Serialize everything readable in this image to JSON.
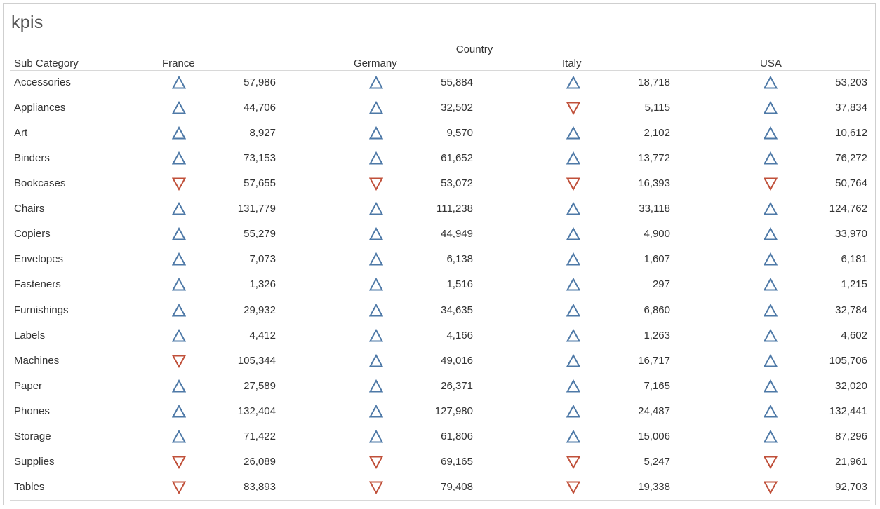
{
  "title": "kpis",
  "column_group_label": "Country",
  "row_header_label": "Sub Category",
  "colors": {
    "up": "#4e79a7",
    "down": "#c0503a"
  },
  "icons": {
    "up": "triangle-up-outline-icon",
    "down": "triangle-down-outline-icon"
  },
  "chart_data": {
    "type": "table",
    "title": "kpis",
    "columns_label": "Country",
    "rows_label": "Sub Category",
    "countries": [
      "France",
      "Germany",
      "Italy",
      "USA"
    ],
    "rows": [
      {
        "name": "Accessories",
        "values": [
          57986,
          55884,
          18718,
          53203
        ],
        "display": [
          "57,986",
          "55,884",
          "18,718",
          "53,203"
        ],
        "trend": [
          "up",
          "up",
          "up",
          "up"
        ]
      },
      {
        "name": "Appliances",
        "values": [
          44706,
          32502,
          5115,
          37834
        ],
        "display": [
          "44,706",
          "32,502",
          "5,115",
          "37,834"
        ],
        "trend": [
          "up",
          "up",
          "down",
          "up"
        ]
      },
      {
        "name": "Art",
        "values": [
          8927,
          9570,
          2102,
          10612
        ],
        "display": [
          "8,927",
          "9,570",
          "2,102",
          "10,612"
        ],
        "trend": [
          "up",
          "up",
          "up",
          "up"
        ]
      },
      {
        "name": "Binders",
        "values": [
          73153,
          61652,
          13772,
          76272
        ],
        "display": [
          "73,153",
          "61,652",
          "13,772",
          "76,272"
        ],
        "trend": [
          "up",
          "up",
          "up",
          "up"
        ]
      },
      {
        "name": "Bookcases",
        "values": [
          57655,
          53072,
          16393,
          50764
        ],
        "display": [
          "57,655",
          "53,072",
          "16,393",
          "50,764"
        ],
        "trend": [
          "down",
          "down",
          "down",
          "down"
        ]
      },
      {
        "name": "Chairs",
        "values": [
          131779,
          111238,
          33118,
          124762
        ],
        "display": [
          "131,779",
          "111,238",
          "33,118",
          "124,762"
        ],
        "trend": [
          "up",
          "up",
          "up",
          "up"
        ]
      },
      {
        "name": "Copiers",
        "values": [
          55279,
          44949,
          4900,
          33970
        ],
        "display": [
          "55,279",
          "44,949",
          "4,900",
          "33,970"
        ],
        "trend": [
          "up",
          "up",
          "up",
          "up"
        ]
      },
      {
        "name": "Envelopes",
        "values": [
          7073,
          6138,
          1607,
          6181
        ],
        "display": [
          "7,073",
          "6,138",
          "1,607",
          "6,181"
        ],
        "trend": [
          "up",
          "up",
          "up",
          "up"
        ]
      },
      {
        "name": "Fasteners",
        "values": [
          1326,
          1516,
          297,
          1215
        ],
        "display": [
          "1,326",
          "1,516",
          "297",
          "1,215"
        ],
        "trend": [
          "up",
          "up",
          "up",
          "up"
        ]
      },
      {
        "name": "Furnishings",
        "values": [
          29932,
          34635,
          6860,
          32784
        ],
        "display": [
          "29,932",
          "34,635",
          "6,860",
          "32,784"
        ],
        "trend": [
          "up",
          "up",
          "up",
          "up"
        ]
      },
      {
        "name": "Labels",
        "values": [
          4412,
          4166,
          1263,
          4602
        ],
        "display": [
          "4,412",
          "4,166",
          "1,263",
          "4,602"
        ],
        "trend": [
          "up",
          "up",
          "up",
          "up"
        ]
      },
      {
        "name": "Machines",
        "values": [
          105344,
          49016,
          16717,
          105706
        ],
        "display": [
          "105,344",
          "49,016",
          "16,717",
          "105,706"
        ],
        "trend": [
          "down",
          "up",
          "up",
          "up"
        ]
      },
      {
        "name": "Paper",
        "values": [
          27589,
          26371,
          7165,
          32020
        ],
        "display": [
          "27,589",
          "26,371",
          "7,165",
          "32,020"
        ],
        "trend": [
          "up",
          "up",
          "up",
          "up"
        ]
      },
      {
        "name": "Phones",
        "values": [
          132404,
          127980,
          24487,
          132441
        ],
        "display": [
          "132,404",
          "127,980",
          "24,487",
          "132,441"
        ],
        "trend": [
          "up",
          "up",
          "up",
          "up"
        ]
      },
      {
        "name": "Storage",
        "values": [
          71422,
          61806,
          15006,
          87296
        ],
        "display": [
          "71,422",
          "61,806",
          "15,006",
          "87,296"
        ],
        "trend": [
          "up",
          "up",
          "up",
          "up"
        ]
      },
      {
        "name": "Supplies",
        "values": [
          26089,
          69165,
          5247,
          21961
        ],
        "display": [
          "26,089",
          "69,165",
          "5,247",
          "21,961"
        ],
        "trend": [
          "down",
          "down",
          "down",
          "down"
        ]
      },
      {
        "name": "Tables",
        "values": [
          83893,
          79408,
          19338,
          92703
        ],
        "display": [
          "83,893",
          "79,408",
          "19,338",
          "92,703"
        ],
        "trend": [
          "down",
          "down",
          "down",
          "down"
        ]
      }
    ]
  }
}
